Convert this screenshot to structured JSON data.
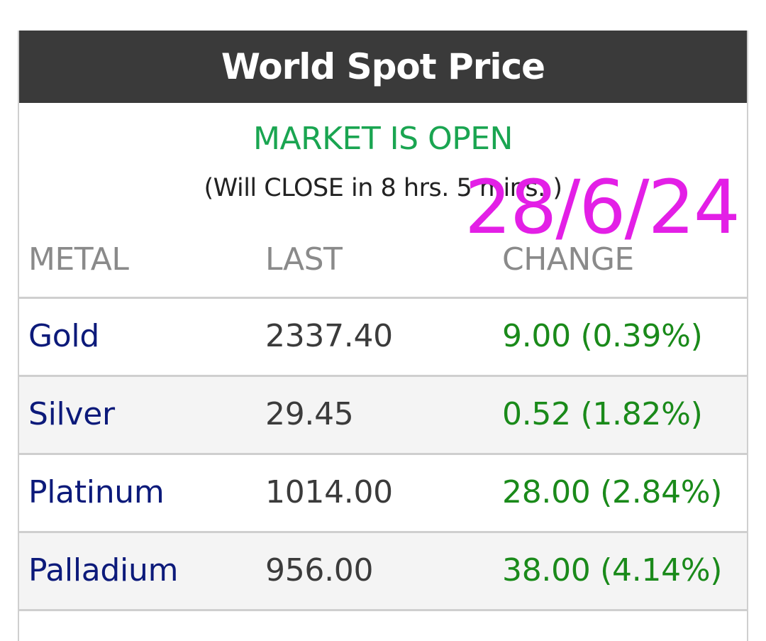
{
  "widget": {
    "title": "World Spot Price",
    "market_status": "MARKET IS OPEN",
    "countdown": "(Will CLOSE in 8 hrs. 5 mins. )"
  },
  "overlay": {
    "date": "28/6/24"
  },
  "table": {
    "headers": [
      "METAL",
      "LAST",
      "CHANGE"
    ],
    "rows": [
      {
        "metal": "Gold",
        "last": "2337.40",
        "change": "9.00 (0.39%)"
      },
      {
        "metal": "Silver",
        "last": "29.45",
        "change": "0.52 (1.82%)"
      },
      {
        "metal": "Platinum",
        "last": "1014.00",
        "change": "28.00 (2.84%)"
      },
      {
        "metal": "Palladium",
        "last": "956.00",
        "change": "38.00 (4.14%)"
      }
    ]
  },
  "colors": {
    "header_bg": "#3a3a3a",
    "status_green": "#1aa551",
    "metal_name": "#0c1a7a",
    "change_green": "#1a8a1a",
    "overlay_magenta": "#e31fe6"
  }
}
